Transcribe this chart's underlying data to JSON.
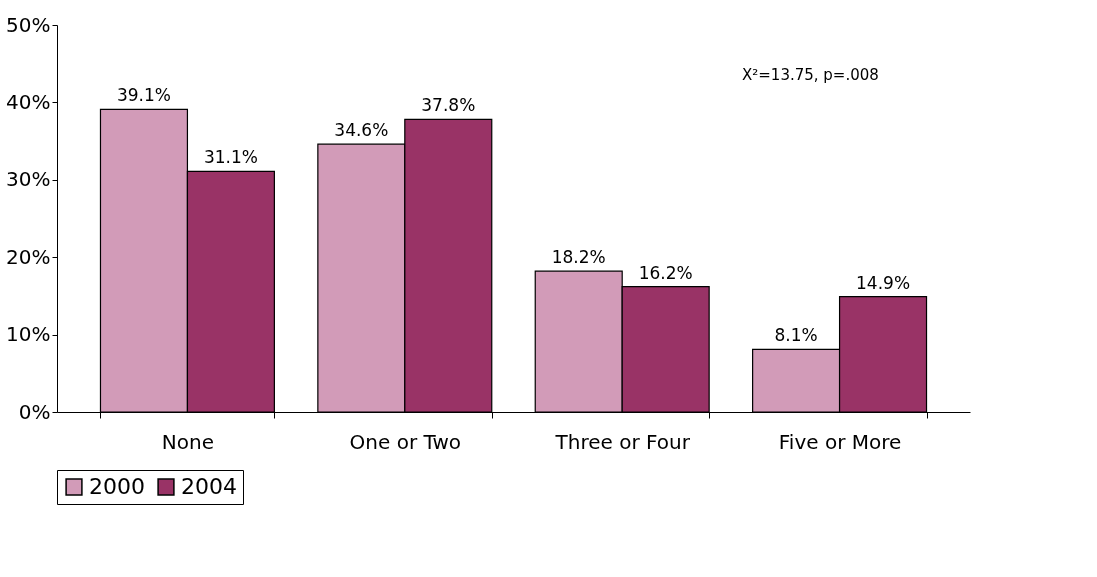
{
  "chart_data": {
    "type": "bar",
    "categories": [
      "None",
      "One or Two",
      "Three or Four",
      "Five or More"
    ],
    "series": [
      {
        "name": "2000",
        "color": "#d29bb8",
        "values": [
          39.1,
          34.6,
          18.2,
          8.1
        ],
        "value_labels": [
          "39.1%",
          "34.6%",
          "18.2%",
          "8.1%"
        ]
      },
      {
        "name": "2004",
        "color": "#993366",
        "values": [
          31.1,
          37.8,
          16.2,
          14.9
        ],
        "value_labels": [
          "31.1%",
          "37.8%",
          "16.2%",
          "14.9%"
        ]
      }
    ],
    "ylim": [
      0,
      50
    ],
    "yticks": [
      {
        "value": 0,
        "label": "0%"
      },
      {
        "value": 10,
        "label": "10%"
      },
      {
        "value": 20,
        "label": "20%"
      },
      {
        "value": 30,
        "label": "30%"
      },
      {
        "value": 40,
        "label": "40%"
      },
      {
        "value": 50,
        "label": "50%"
      }
    ],
    "annotations": [
      "X²=13.75, p=.008"
    ],
    "legend": "bottom",
    "grid": false
  }
}
